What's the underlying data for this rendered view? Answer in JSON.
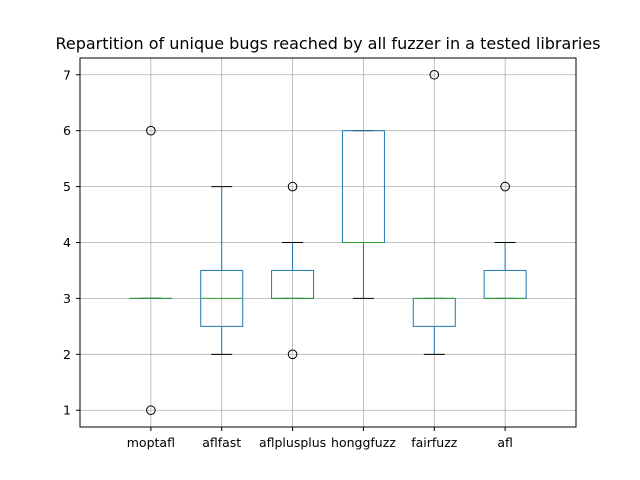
{
  "chart_data": {
    "type": "boxplot",
    "title": "Repartition of unique bugs reached by all fuzzer in a tested libraries",
    "xlabel": "",
    "ylabel": "",
    "ylim": [
      0.7,
      7.3
    ],
    "yticks": [
      1,
      2,
      3,
      4,
      5,
      6,
      7
    ],
    "grid": true,
    "categories": [
      "moptafl",
      "aflfast",
      "aflplusplus",
      "honggfuzz",
      "fairfuzz",
      "afl"
    ],
    "boxes": [
      {
        "name": "moptafl",
        "q1": 3,
        "median": 3,
        "q3": 3,
        "whisker_low": 3,
        "whisker_high": 3,
        "outliers": [
          6,
          1
        ]
      },
      {
        "name": "aflfast",
        "q1": 2.5,
        "median": 3,
        "q3": 3.5,
        "whisker_low": 2,
        "whisker_high": 5,
        "outliers": []
      },
      {
        "name": "aflplusplus",
        "q1": 3,
        "median": 3,
        "q3": 3.5,
        "whisker_low": 3,
        "whisker_high": 4,
        "outliers": [
          5,
          2
        ]
      },
      {
        "name": "honggfuzz",
        "q1": 4,
        "median": 4,
        "q3": 6,
        "whisker_low": 3,
        "whisker_high": 6,
        "outliers": []
      },
      {
        "name": "fairfuzz",
        "q1": 2.5,
        "median": 3,
        "q3": 3,
        "whisker_low": 2,
        "whisker_high": 3,
        "outliers": [
          7
        ]
      },
      {
        "name": "afl",
        "q1": 3,
        "median": 3,
        "q3": 3.5,
        "whisker_low": 3,
        "whisker_high": 4,
        "outliers": [
          5
        ]
      }
    ],
    "colors": {
      "box": "#1f77b4",
      "median": "#2ca02c",
      "whisker": "#1f77b4",
      "cap": "#000000",
      "grid": "#b0b0b0",
      "axis": "#000000"
    }
  }
}
